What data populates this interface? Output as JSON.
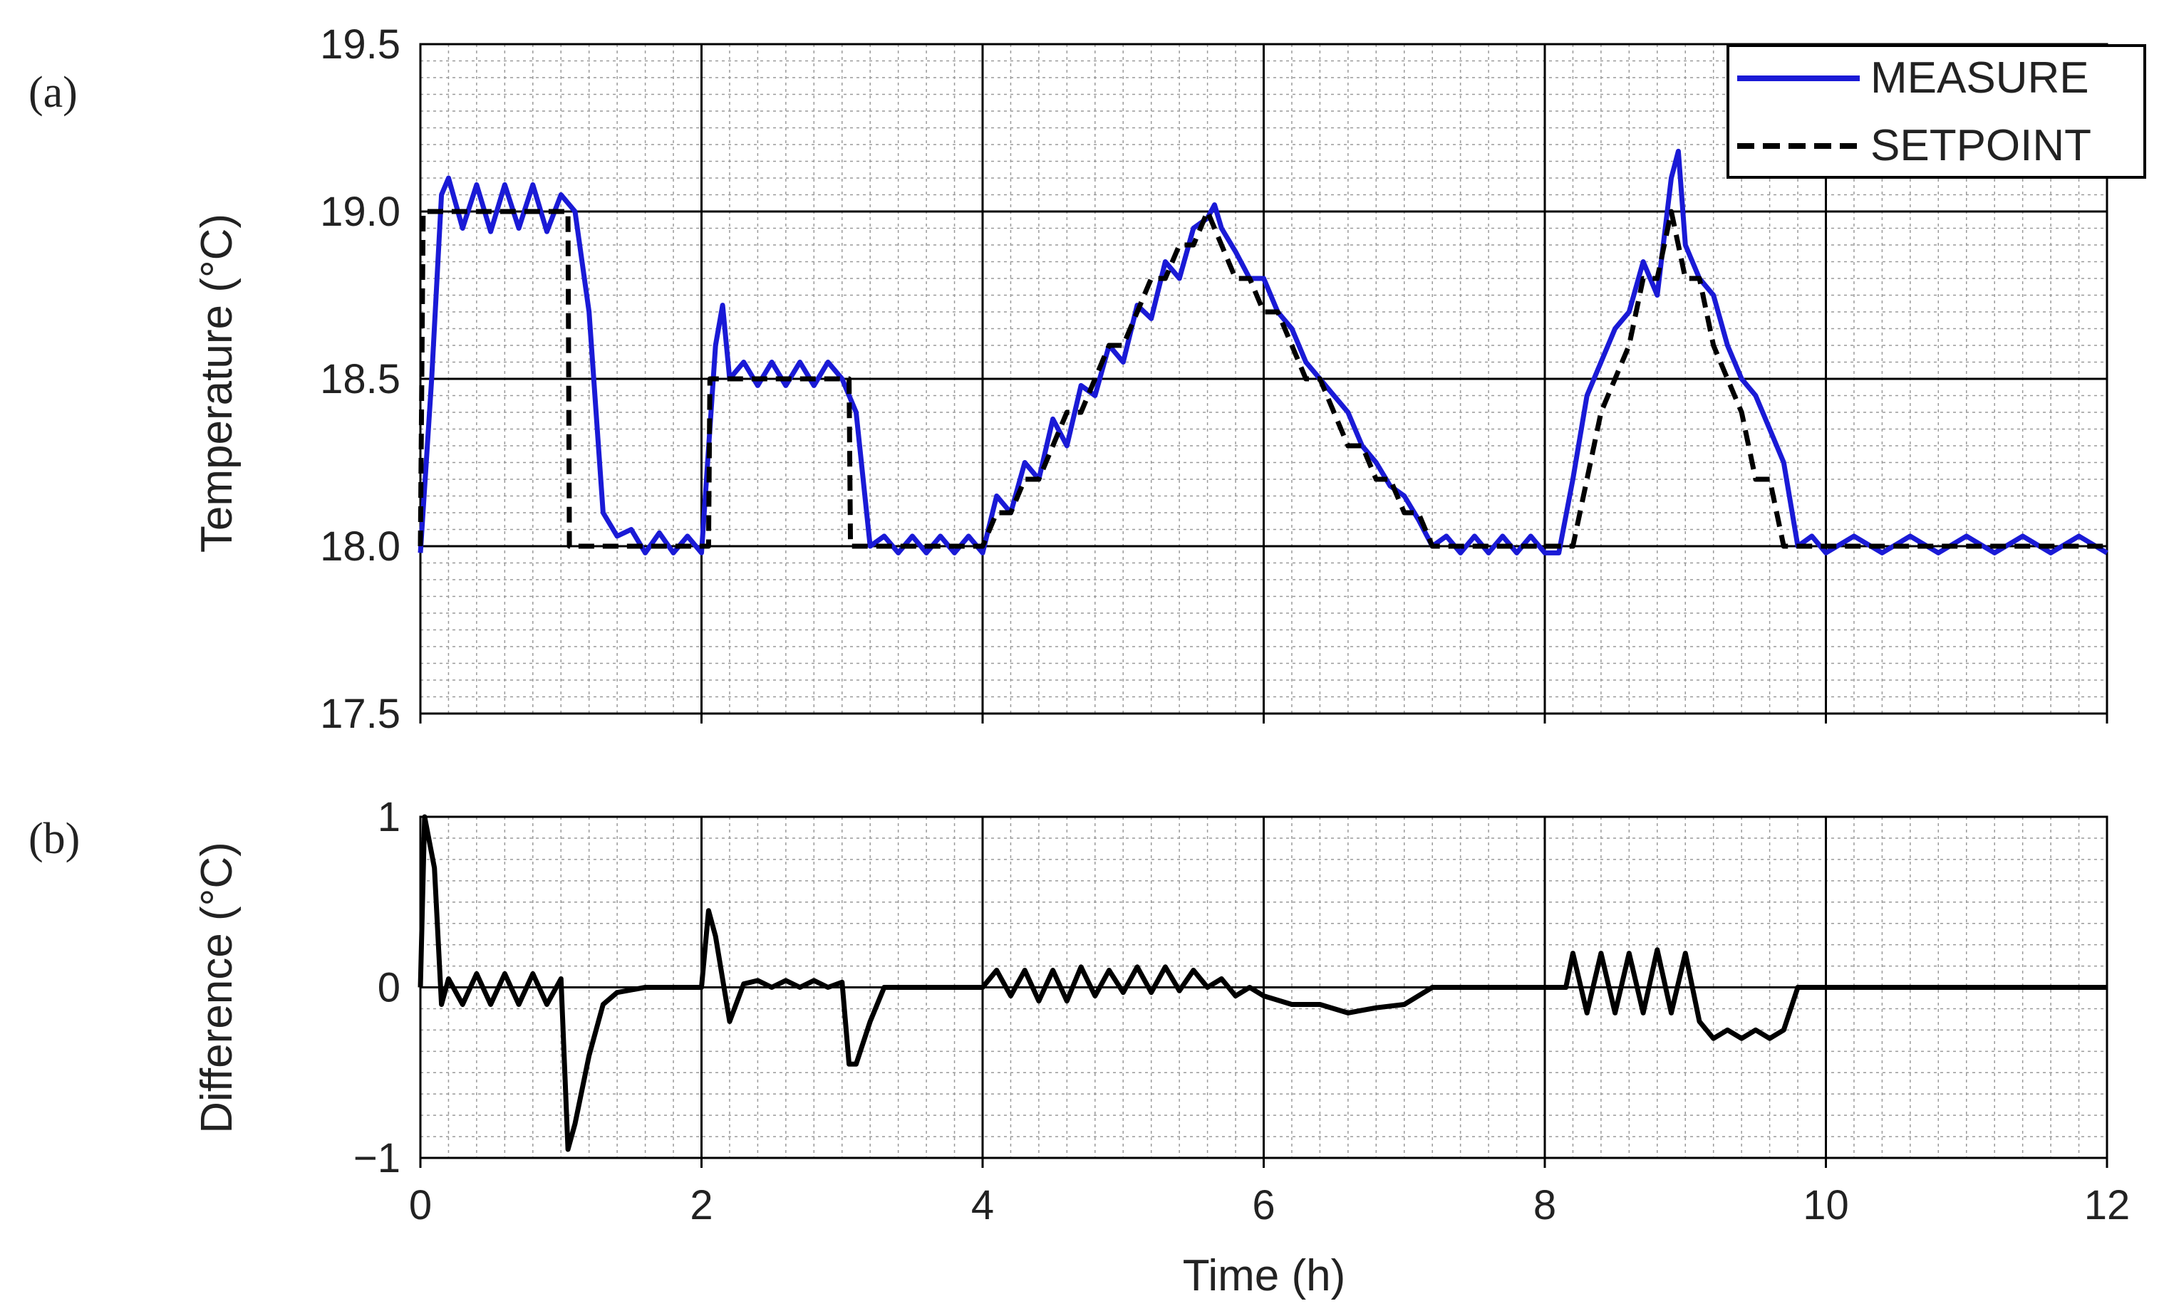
{
  "colors": {
    "measure": "#1a1ad6",
    "setpoint": "#000000",
    "difference": "#000000",
    "grid_major": "#000000",
    "grid_minor": "#9a9a9a"
  },
  "chart_data": [
    {
      "panel": "(a)",
      "type": "line",
      "title": "",
      "xlabel": "",
      "ylabel": "Temperature (°C)",
      "xlim": [
        0,
        12
      ],
      "ylim": [
        17.5,
        19.5
      ],
      "x_ticks": [
        0,
        2,
        4,
        6,
        8,
        10,
        12
      ],
      "y_ticks": [
        17.5,
        18.0,
        18.5,
        19.0,
        19.5
      ],
      "y_tick_labels": [
        "17.5",
        "18.0",
        "18.5",
        "19.0",
        "19.5"
      ],
      "grid": true,
      "legend": {
        "placement": "top-right",
        "entries": [
          "MEASURE",
          "SETPOINT"
        ]
      },
      "series": [
        {
          "name": "MEASURE",
          "style": "solid",
          "color": "#1a1ad6",
          "x": [
            0,
            0.08,
            0.15,
            0.2,
            0.3,
            0.4,
            0.5,
            0.6,
            0.7,
            0.8,
            0.9,
            1.0,
            1.1,
            1.2,
            1.3,
            1.4,
            1.5,
            1.6,
            1.7,
            1.8,
            1.9,
            2.0,
            2.1,
            2.15,
            2.2,
            2.3,
            2.4,
            2.5,
            2.6,
            2.7,
            2.8,
            2.9,
            3.0,
            3.1,
            3.2,
            3.3,
            3.4,
            3.5,
            3.6,
            3.7,
            3.8,
            3.9,
            4.0,
            4.1,
            4.2,
            4.3,
            4.4,
            4.5,
            4.6,
            4.7,
            4.8,
            4.9,
            5.0,
            5.1,
            5.2,
            5.3,
            5.4,
            5.5,
            5.6,
            5.65,
            5.7,
            5.8,
            5.9,
            6.0,
            6.1,
            6.2,
            6.3,
            6.4,
            6.5,
            6.6,
            6.7,
            6.8,
            6.9,
            7.0,
            7.1,
            7.2,
            7.3,
            7.4,
            7.5,
            7.6,
            7.7,
            7.8,
            7.9,
            8.0,
            8.1,
            8.2,
            8.3,
            8.4,
            8.5,
            8.6,
            8.7,
            8.8,
            8.9,
            8.95,
            9.0,
            9.1,
            9.2,
            9.3,
            9.4,
            9.5,
            9.6,
            9.7,
            9.8,
            9.9,
            10.0,
            10.2,
            10.4,
            10.6,
            10.8,
            11.0,
            11.2,
            11.4,
            11.6,
            11.8,
            12.0
          ],
          "y": [
            17.98,
            18.5,
            19.05,
            19.1,
            18.95,
            19.08,
            18.94,
            19.08,
            18.95,
            19.08,
            18.94,
            19.05,
            19.0,
            18.7,
            18.1,
            18.03,
            18.05,
            17.98,
            18.04,
            17.98,
            18.03,
            17.98,
            18.6,
            18.72,
            18.5,
            18.55,
            18.48,
            18.55,
            18.48,
            18.55,
            18.48,
            18.55,
            18.5,
            18.4,
            18.0,
            18.03,
            17.98,
            18.03,
            17.98,
            18.03,
            17.98,
            18.03,
            17.98,
            18.15,
            18.1,
            18.25,
            18.2,
            18.38,
            18.3,
            18.48,
            18.45,
            18.6,
            18.55,
            18.72,
            18.68,
            18.85,
            18.8,
            18.95,
            18.98,
            19.02,
            18.95,
            18.88,
            18.8,
            18.8,
            18.7,
            18.65,
            18.55,
            18.5,
            18.45,
            18.4,
            18.3,
            18.25,
            18.18,
            18.15,
            18.08,
            18.0,
            18.03,
            17.98,
            18.03,
            17.98,
            18.03,
            17.98,
            18.03,
            17.98,
            17.98,
            18.2,
            18.45,
            18.55,
            18.65,
            18.7,
            18.85,
            18.75,
            19.1,
            19.18,
            18.9,
            18.8,
            18.75,
            18.6,
            18.5,
            18.45,
            18.35,
            18.25,
            18.0,
            18.03,
            17.98,
            18.03,
            17.98,
            18.03,
            17.98,
            18.03,
            17.98,
            18.03,
            17.98,
            18.03,
            17.98
          ]
        },
        {
          "name": "SETPOINT",
          "style": "dashed",
          "color": "#000000",
          "x": [
            0,
            0.02,
            1.05,
            1.06,
            2.05,
            2.06,
            3.05,
            3.06,
            4.0,
            4.1,
            4.2,
            4.3,
            4.4,
            4.5,
            4.6,
            4.7,
            4.8,
            4.9,
            5.0,
            5.1,
            5.2,
            5.3,
            5.4,
            5.5,
            5.6,
            5.7,
            5.8,
            5.9,
            6.0,
            6.1,
            6.2,
            6.3,
            6.4,
            6.5,
            6.6,
            6.7,
            6.8,
            6.9,
            7.0,
            7.1,
            7.2,
            7.3,
            8.2,
            8.3,
            8.4,
            8.5,
            8.6,
            8.7,
            8.8,
            8.9,
            9.0,
            9.1,
            9.2,
            9.3,
            9.4,
            9.5,
            9.6,
            9.7,
            9.8,
            12.0
          ],
          "y": [
            18.0,
            19.0,
            19.0,
            18.0,
            18.0,
            18.5,
            18.5,
            18.0,
            18.0,
            18.1,
            18.1,
            18.2,
            18.2,
            18.3,
            18.4,
            18.4,
            18.5,
            18.6,
            18.6,
            18.7,
            18.8,
            18.8,
            18.9,
            18.9,
            19.0,
            18.9,
            18.8,
            18.8,
            18.7,
            18.7,
            18.6,
            18.5,
            18.5,
            18.4,
            18.3,
            18.3,
            18.2,
            18.2,
            18.1,
            18.1,
            18.0,
            18.0,
            18.0,
            18.2,
            18.4,
            18.5,
            18.6,
            18.8,
            18.8,
            19.0,
            18.8,
            18.8,
            18.6,
            18.5,
            18.4,
            18.2,
            18.2,
            18.0,
            18.0,
            18.0
          ]
        }
      ]
    },
    {
      "panel": "(b)",
      "type": "line",
      "title": "",
      "xlabel": "Time (h)",
      "ylabel": "Difference (°C)",
      "xlim": [
        0,
        12
      ],
      "ylim": [
        -1,
        1
      ],
      "x_ticks": [
        0,
        2,
        4,
        6,
        8,
        10,
        12
      ],
      "x_tick_labels": [
        "0",
        "2",
        "4",
        "6",
        "8",
        "10",
        "12"
      ],
      "y_ticks": [
        -1,
        0,
        1
      ],
      "y_tick_labels": [
        "−1",
        "0",
        "1"
      ],
      "grid": true,
      "series": [
        {
          "color": "#000000",
          "x": [
            0,
            0.03,
            0.1,
            0.15,
            0.2,
            0.3,
            0.4,
            0.5,
            0.6,
            0.7,
            0.8,
            0.9,
            1.0,
            1.05,
            1.1,
            1.2,
            1.3,
            1.4,
            1.6,
            1.8,
            2.0,
            2.05,
            2.1,
            2.2,
            2.3,
            2.4,
            2.5,
            2.6,
            2.7,
            2.8,
            2.9,
            3.0,
            3.05,
            3.1,
            3.2,
            3.3,
            3.5,
            3.7,
            3.9,
            4.0,
            4.1,
            4.2,
            4.3,
            4.4,
            4.5,
            4.6,
            4.7,
            4.8,
            4.9,
            5.0,
            5.1,
            5.2,
            5.3,
            5.4,
            5.5,
            5.6,
            5.7,
            5.8,
            5.9,
            6.0,
            6.2,
            6.4,
            6.6,
            6.8,
            7.0,
            7.2,
            7.4,
            7.6,
            7.8,
            8.0,
            8.15,
            8.2,
            8.3,
            8.4,
            8.5,
            8.6,
            8.7,
            8.8,
            8.9,
            9.0,
            9.1,
            9.2,
            9.3,
            9.4,
            9.5,
            9.6,
            9.7,
            9.8,
            10.0,
            10.4,
            10.8,
            11.2,
            11.6,
            12.0
          ],
          "y": [
            0.0,
            1.0,
            0.7,
            -0.1,
            0.05,
            -0.1,
            0.08,
            -0.1,
            0.08,
            -0.1,
            0.08,
            -0.1,
            0.05,
            -0.95,
            -0.8,
            -0.4,
            -0.1,
            -0.03,
            0.0,
            0.0,
            0.0,
            0.45,
            0.3,
            -0.2,
            0.02,
            0.04,
            0.0,
            0.04,
            0.0,
            0.04,
            0.0,
            0.03,
            -0.45,
            -0.45,
            -0.2,
            0.0,
            0.0,
            0.0,
            0.0,
            0.0,
            0.1,
            -0.05,
            0.1,
            -0.08,
            0.1,
            -0.08,
            0.12,
            -0.05,
            0.1,
            -0.03,
            0.12,
            -0.03,
            0.12,
            -0.02,
            0.1,
            0.0,
            0.05,
            -0.05,
            0.0,
            -0.05,
            -0.1,
            -0.1,
            -0.15,
            -0.12,
            -0.1,
            0.0,
            0.0,
            0.0,
            0.0,
            0.0,
            0.0,
            0.2,
            -0.15,
            0.2,
            -0.15,
            0.2,
            -0.15,
            0.22,
            -0.15,
            0.2,
            -0.2,
            -0.3,
            -0.25,
            -0.3,
            -0.25,
            -0.3,
            -0.25,
            0.0,
            0.0,
            0.0,
            0.0,
            0.0,
            0.0,
            0.0
          ]
        }
      ]
    }
  ]
}
